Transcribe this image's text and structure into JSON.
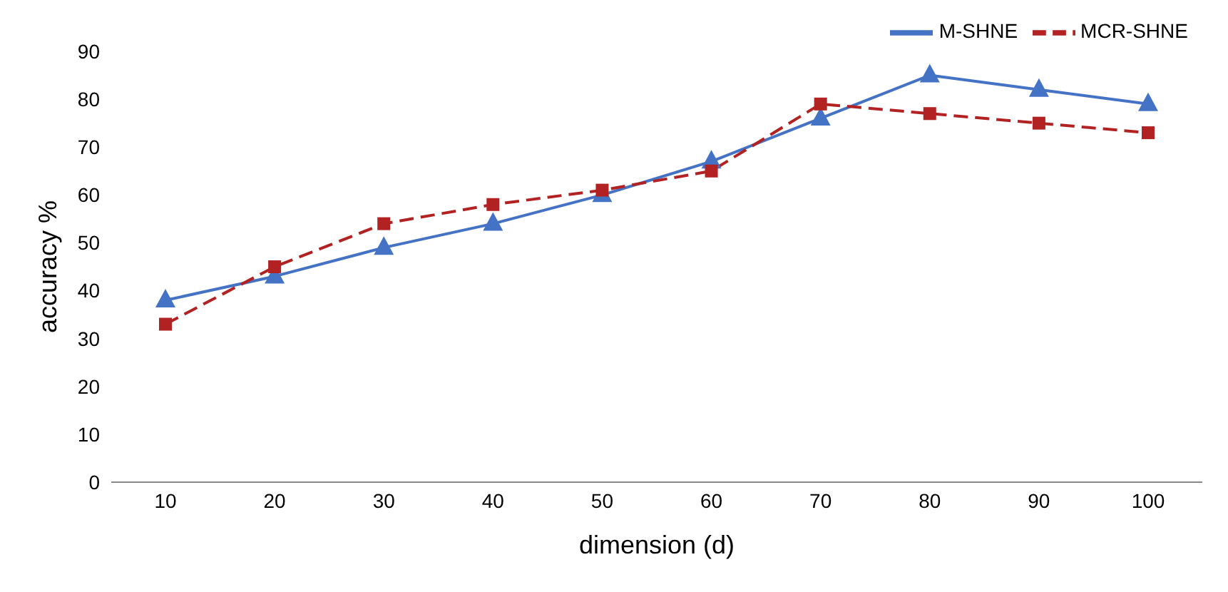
{
  "chart_data": {
    "type": "line",
    "xlabel": "dimension (d)",
    "ylabel": "accuracy %",
    "categories": [
      "10",
      "20",
      "30",
      "40",
      "50",
      "60",
      "70",
      "80",
      "90",
      "100"
    ],
    "series": [
      {
        "name": "M-SHNE",
        "color": "#4472c4",
        "marker": "triangle",
        "line_style": "solid",
        "values": [
          38,
          43,
          49,
          54,
          60,
          67,
          76,
          85,
          82,
          79
        ]
      },
      {
        "name": "MCR-SHNE",
        "color": "#b22222",
        "marker": "square",
        "line_style": "dashed",
        "values": [
          33,
          45,
          54,
          58,
          61,
          65,
          79,
          77,
          75,
          73
        ]
      }
    ],
    "ylim": [
      0,
      90
    ],
    "yticks": [
      0,
      10,
      20,
      30,
      40,
      50,
      60,
      70,
      80,
      90
    ],
    "grid": false,
    "legend": "top right"
  }
}
